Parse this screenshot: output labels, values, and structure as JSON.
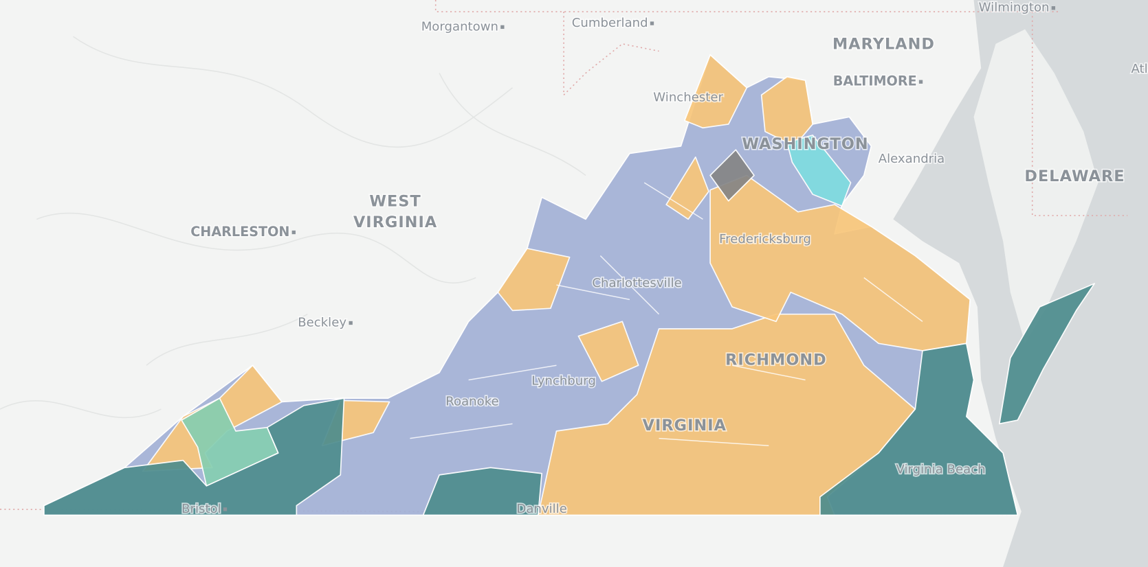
{
  "map": {
    "labels": [
      "Morgantown",
      "Cumberland",
      "Wilmington",
      "MARYLAND",
      "BALTIMORE",
      "Atlan",
      "Winchester",
      "WASHINGTON",
      "Alexandria",
      "DELAWARE",
      "WEST",
      "VIRGINIA",
      "CHARLESTON",
      "Beckley",
      "Fredericksburg",
      "Charlottesville",
      "RICHMOND",
      "Lynchburg",
      "Roanoke",
      "VIRGINIA",
      "Virginia Beach",
      "Danville",
      "Bristol"
    ]
  }
}
